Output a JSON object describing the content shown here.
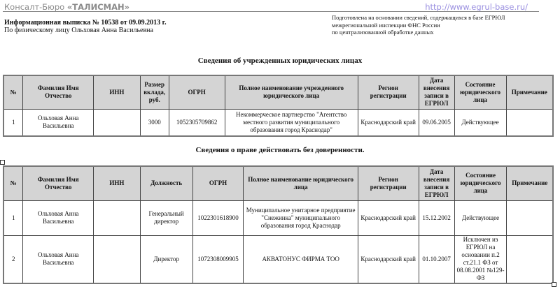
{
  "header": {
    "brand_prefix": "Консалт-Бюро",
    "brand_name": "«ТАЛИСМАН»",
    "url": "http://www.egrul-base.ru/",
    "doc_title": "Информационная выписка № 10538 от 09.09.2013 г.",
    "subject": "По физическому лицу Ольховая Анна Васильевна",
    "source_lines": [
      "Подготовлена на основании сведений, содержащихся в базе ЕГРЮЛ",
      "межрегиональной инспекции ФНС России",
      "по централизованной обработке данных"
    ]
  },
  "table1": {
    "title": "Сведения об учрежденных юридических лицах",
    "headers": [
      "№",
      "Фамилия Имя Отчество",
      "ИНН",
      "Размер вклада, руб.",
      "ОГРН",
      "Полное наименование учрежденного юридического лица",
      "Регион регистрации",
      "Дата внесения записи в ЕГРЮЛ",
      "Состояние юридического лица",
      "Примечание"
    ],
    "rows": [
      [
        "1",
        "Ольховая Анна Васильевна",
        "",
        "3000",
        "1052305709862",
        "Некоммерческое партнерство \"Агентство местного развития муниципального образования город Краснодар\"",
        "Краснодарский край",
        "09.06.2005",
        "Действующее",
        ""
      ]
    ]
  },
  "table2": {
    "title": "Сведения о праве действовать без доверенности.",
    "headers": [
      "№",
      "Фамилия Имя Отчество",
      "ИНН",
      "Должность",
      "ОГРН",
      "Полное наименование юридического лица",
      "Регион регистрации",
      "Дата внесения записи в ЕГРЮЛ",
      "Состояние юридического лица",
      "Примечание"
    ],
    "rows": [
      [
        "1",
        "Ольховая Анна Васильевна",
        "",
        "Генеральный директор",
        "1022301618900",
        "Муниципальное унитарное предприятие \"Снежинка\" муниципального образования город Краснодар",
        "Краснодарский край",
        "15.12.2002",
        "Действующее",
        ""
      ],
      [
        "2",
        "Ольховая Анна Васильевна",
        "",
        "Директор",
        "1072308009905",
        "АКВАТОНУС ФИРМА ТОО",
        "Краснодарский край",
        "01.10.2007",
        "Исключен из ЕГРЮЛ на основании п.2 ст.21.1 ФЗ от 08.08.2001 №129-ФЗ",
        ""
      ]
    ]
  }
}
